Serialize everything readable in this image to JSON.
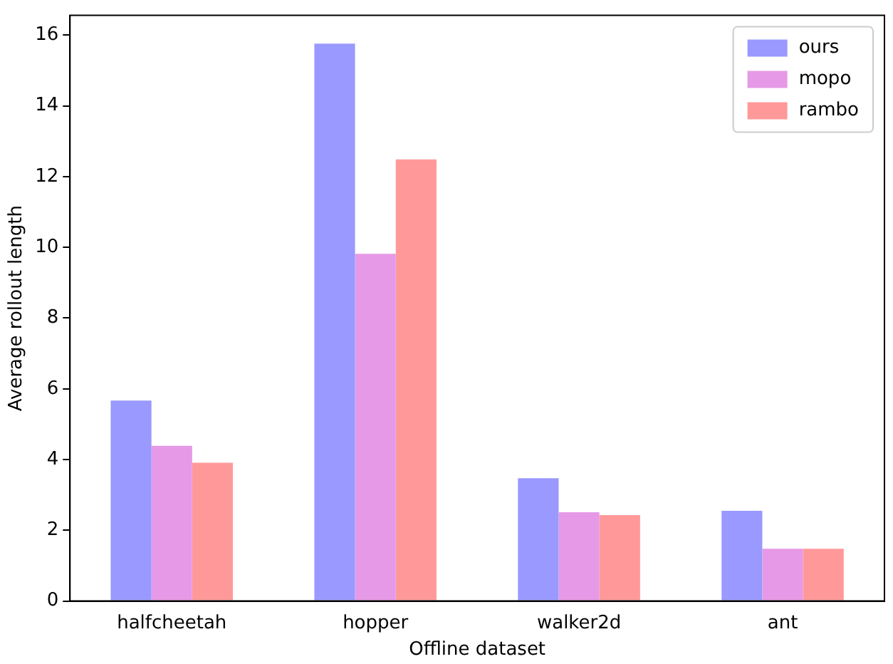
{
  "chart_data": {
    "type": "bar",
    "xlabel": "Offline dataset",
    "ylabel": "Average rollout length",
    "categories": [
      "halfcheetah",
      "hopper",
      "walker2d",
      "ant"
    ],
    "series": [
      {
        "name": "ours",
        "color": "#9999ff",
        "values": [
          5.67,
          15.76,
          3.47,
          2.55
        ]
      },
      {
        "name": "mopo",
        "color": "#e699e6",
        "values": [
          4.39,
          9.82,
          2.51,
          1.48
        ]
      },
      {
        "name": "rambo",
        "color": "#ff9999",
        "values": [
          3.91,
          12.49,
          2.43,
          1.48
        ]
      }
    ],
    "ylim": [
      0,
      16.56
    ],
    "yticks": [
      0,
      2,
      4,
      6,
      8,
      10,
      12,
      14,
      16
    ],
    "grid": false,
    "legend": "top right"
  }
}
